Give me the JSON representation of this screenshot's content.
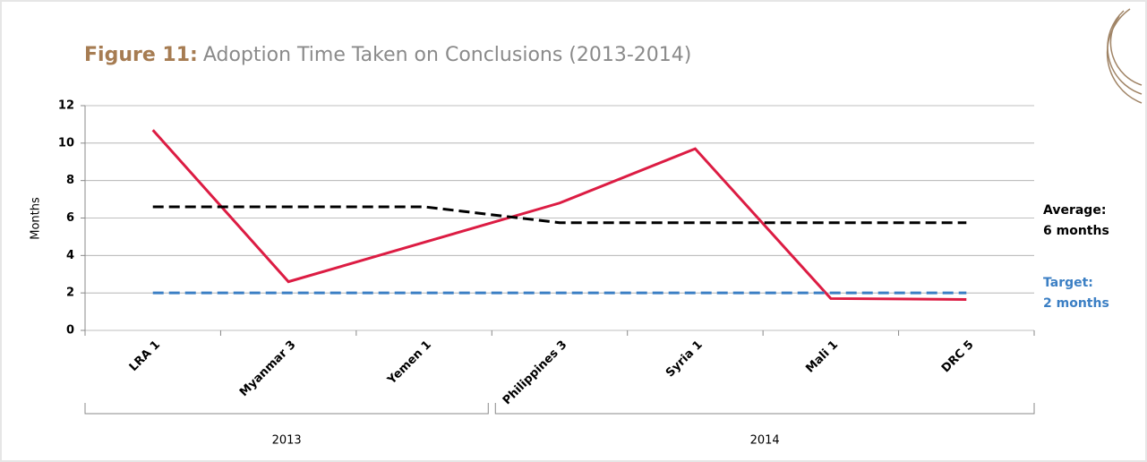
{
  "chart_data": {
    "type": "line",
    "title_prefix": "Figure 11:",
    "title": "Adoption Time Taken on Conclusions (2013-2014)",
    "y_label": "Months",
    "categories": [
      "LRA 1",
      "Myanmar 3",
      "Yemen 1",
      "Philippines 3",
      "Syria 1",
      "Mali 1",
      "DRC 5"
    ],
    "groups": [
      "2013",
      "2013",
      "2013",
      "2014",
      "2014",
      "2014",
      "2014"
    ],
    "series": [
      {
        "color": "#dc1c43",
        "dash": false,
        "values": [
          10.7,
          2.6,
          4.7,
          6.8,
          9.7,
          1.7,
          1.65
        ]
      },
      {
        "color": "#000000",
        "dash": true,
        "values": [
          6.6,
          6.6,
          6.6,
          5.75,
          5.75,
          5.75,
          5.75
        ]
      },
      {
        "color": "#3b7fc4",
        "dash": true,
        "values": [
          2,
          2,
          2,
          2,
          2,
          2,
          2
        ]
      }
    ],
    "annotations": [
      {
        "lines": [
          "Average:",
          "6 months"
        ],
        "color": "#000000"
      },
      {
        "lines": [
          "Target:",
          "2 months"
        ],
        "color": "#3b7fc4"
      }
    ],
    "ylim": [
      0,
      12
    ],
    "yticks": [
      0,
      2,
      4,
      6,
      8,
      10,
      12
    ],
    "grid": true
  }
}
